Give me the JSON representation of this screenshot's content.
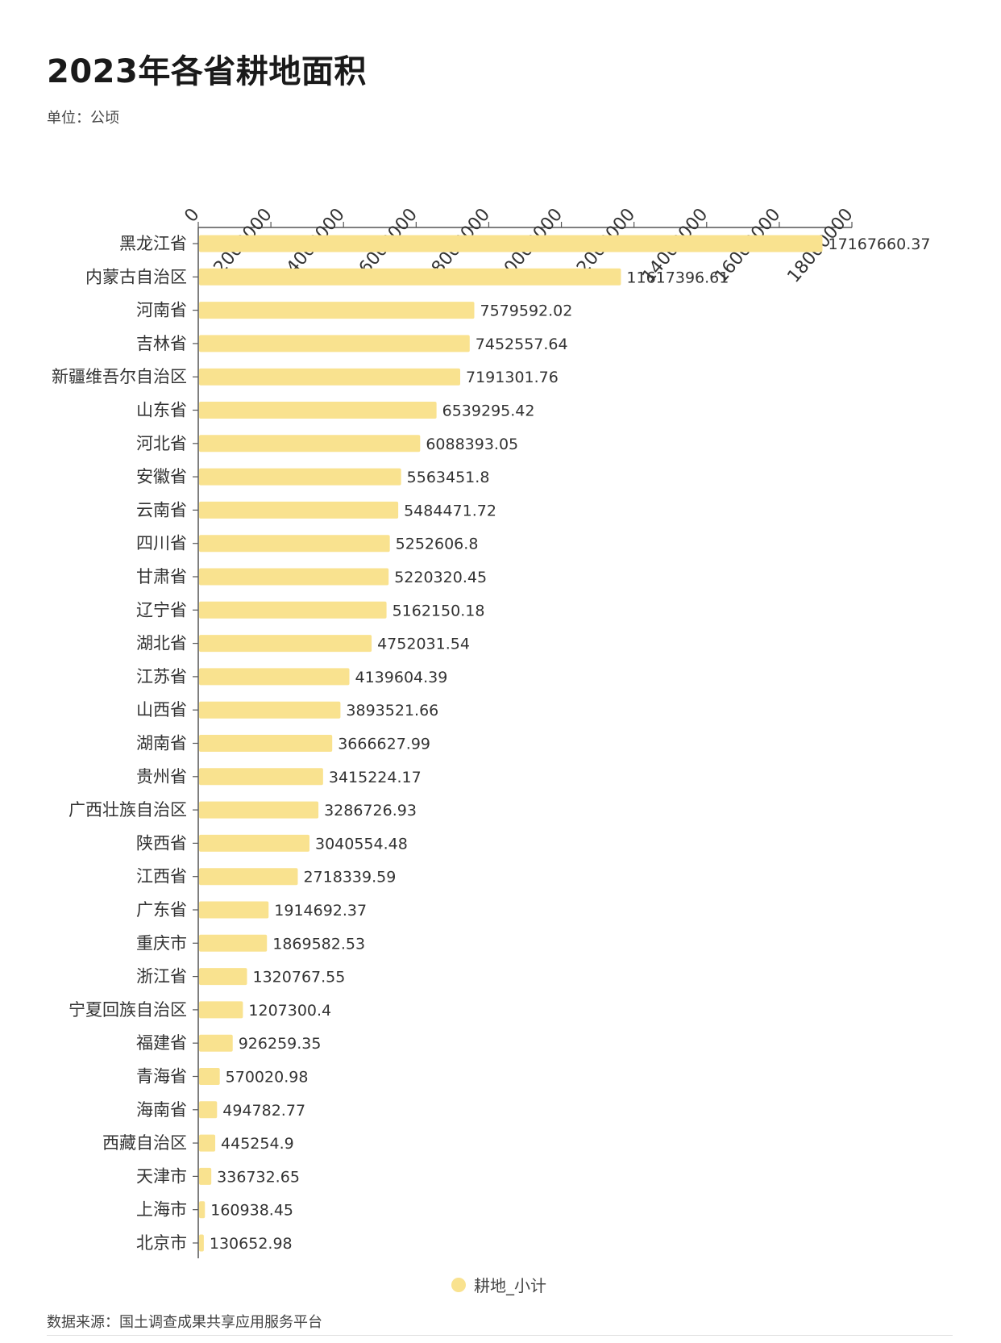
{
  "title": "2023年各省耕地面积",
  "unit_label": "单位：公顷",
  "source_label": "数据来源：国土调查成果共享应用服务平台",
  "colors": {
    "bar": "#f9e28f",
    "axis": "#555555"
  },
  "chart_data": {
    "type": "bar",
    "orientation": "horizontal",
    "title": "2023年各省耕地面积",
    "xlim": [
      0,
      18000000
    ],
    "x_ticks": [
      0,
      2000000,
      4000000,
      6000000,
      8000000,
      10000000,
      12000000,
      14000000,
      16000000,
      18000000
    ],
    "x_tick_labels": [
      "0",
      "2000000",
      "4000000",
      "6000000",
      "8000000",
      "10000000",
      "12000000",
      "14000000",
      "16000000",
      "18000000"
    ],
    "x_axis_position": "top",
    "grid": false,
    "legend": "bottom-center",
    "categories": [
      "黑龙江省",
      "内蒙古自治区",
      "河南省",
      "吉林省",
      "新疆维吾尔自治区",
      "山东省",
      "河北省",
      "安徽省",
      "云南省",
      "四川省",
      "甘肃省",
      "辽宁省",
      "湖北省",
      "江苏省",
      "山西省",
      "湖南省",
      "贵州省",
      "广西壮族自治区",
      "陕西省",
      "江西省",
      "广东省",
      "重庆市",
      "浙江省",
      "宁夏回族自治区",
      "福建省",
      "青海省",
      "海南省",
      "西藏自治区",
      "天津市",
      "上海市",
      "北京市"
    ],
    "series": [
      {
        "name": "耕地_小计",
        "values": [
          17167660.37,
          11617396.61,
          7579592.02,
          7452557.64,
          7191301.76,
          6539295.42,
          6088393.05,
          5563451.8,
          5484471.72,
          5252606.8,
          5220320.45,
          5162150.18,
          4752031.54,
          4139604.39,
          3893521.66,
          3666627.99,
          3415224.17,
          3286726.93,
          3040554.48,
          2718339.59,
          1914692.37,
          1869582.53,
          1320767.55,
          1207300.4,
          926259.35,
          570020.98,
          494782.77,
          445254.9,
          336732.65,
          160938.45,
          130652.98
        ],
        "value_labels": [
          "17167660.37",
          "11617396.61",
          "7579592.02",
          "7452557.64",
          "7191301.76",
          "6539295.42",
          "6088393.05",
          "5563451.8",
          "5484471.72",
          "5252606.8",
          "5220320.45",
          "5162150.18",
          "4752031.54",
          "4139604.39",
          "3893521.66",
          "3666627.99",
          "3415224.17",
          "3286726.93",
          "3040554.48",
          "2718339.59",
          "1914692.37",
          "1869582.53",
          "1320767.55",
          "1207300.4",
          "926259.35",
          "570020.98",
          "494782.77",
          "445254.9",
          "336732.65",
          "160938.45",
          "130652.98"
        ]
      }
    ]
  }
}
